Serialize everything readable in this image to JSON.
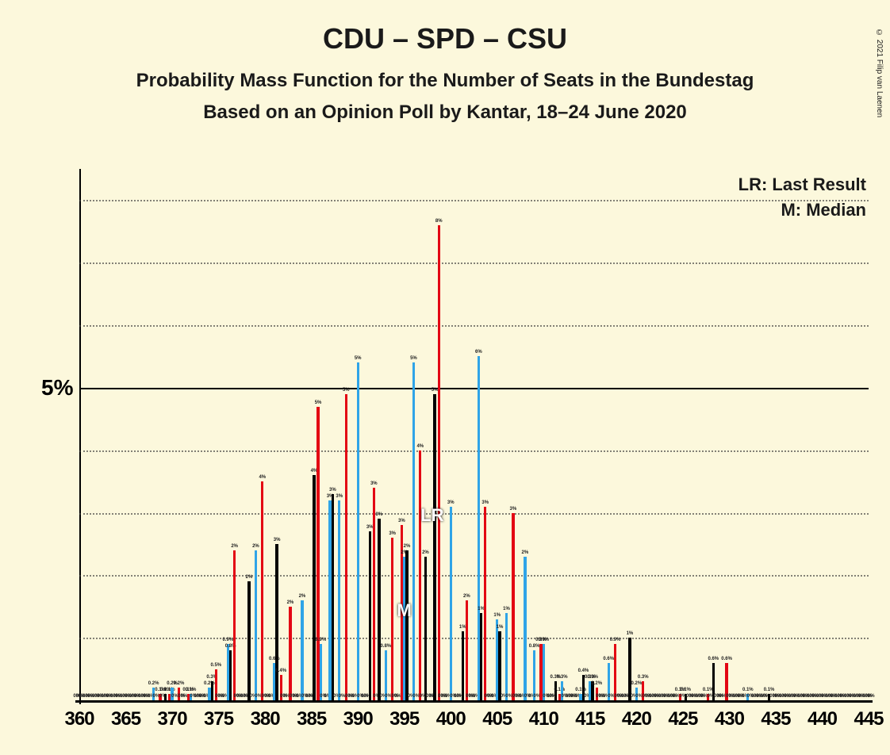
{
  "title": "CDU – SPD – CSU",
  "subtitle1": "Probability Mass Function for the Number of Seats in the Bundestag",
  "subtitle2": "Based on an Opinion Poll by Kantar, 18–24 June 2020",
  "copyright": "© 2021 Filip van Laenen",
  "legend": {
    "lr": "LR: Last Result",
    "m": "M: Median"
  },
  "chart": {
    "type": "bar",
    "background": "#fcf8dc",
    "grid_color": "#333333",
    "x_min": 360,
    "x_max": 445,
    "x_tick_step": 5,
    "y_min": 0,
    "y_max": 8.5,
    "y_tick_major": 5,
    "y_tick_minor": 1,
    "y_major_label": "5%",
    "x_ticks": [
      "360",
      "365",
      "370",
      "375",
      "380",
      "385",
      "390",
      "395",
      "400",
      "405",
      "410",
      "415",
      "420",
      "425",
      "430",
      "435",
      "440",
      "445"
    ],
    "series": [
      {
        "name": "series-red",
        "color": "#e30613",
        "offset": -1
      },
      {
        "name": "series-blue",
        "color": "#2fa4e7",
        "offset": 0
      },
      {
        "name": "series-black",
        "color": "#000000",
        "offset": 1
      }
    ],
    "bar_width": 3.3,
    "group_spacing": 11.7,
    "data": [
      {
        "x": 360,
        "v": [
          0,
          0,
          0
        ]
      },
      {
        "x": 361,
        "v": [
          0,
          0,
          0
        ]
      },
      {
        "x": 362,
        "v": [
          0,
          0,
          0
        ]
      },
      {
        "x": 363,
        "v": [
          0,
          0,
          0
        ]
      },
      {
        "x": 364,
        "v": [
          0,
          0,
          0
        ]
      },
      {
        "x": 365,
        "v": [
          0,
          0,
          0
        ]
      },
      {
        "x": 366,
        "v": [
          0,
          0,
          0
        ]
      },
      {
        "x": 367,
        "v": [
          0,
          0,
          0
        ]
      },
      {
        "x": 368,
        "v": [
          0,
          0.2,
          0
        ]
      },
      {
        "x": 369,
        "v": [
          0.1,
          0,
          0.1
        ]
      },
      {
        "x": 370,
        "v": [
          0.1,
          0.2,
          0
        ]
      },
      {
        "x": 371,
        "v": [
          0.2,
          0,
          0
        ]
      },
      {
        "x": 372,
        "v": [
          0.1,
          0.1,
          0
        ]
      },
      {
        "x": 373,
        "v": [
          0,
          0,
          0
        ]
      },
      {
        "x": 374,
        "v": [
          0,
          0.2,
          0.3
        ]
      },
      {
        "x": 375,
        "v": [
          0.5,
          0,
          0
        ]
      },
      {
        "x": 376,
        "v": [
          0,
          0.9,
          0.8
        ]
      },
      {
        "x": 377,
        "v": [
          2.4,
          0,
          0
        ]
      },
      {
        "x": 378,
        "v": [
          0,
          0,
          1.9
        ]
      },
      {
        "x": 379,
        "v": [
          0,
          2.4,
          0
        ]
      },
      {
        "x": 380,
        "v": [
          3.5,
          0,
          0
        ]
      },
      {
        "x": 381,
        "v": [
          0,
          0.6,
          2.5
        ]
      },
      {
        "x": 382,
        "v": [
          0.4,
          0,
          0
        ]
      },
      {
        "x": 383,
        "v": [
          1.5,
          0,
          0
        ]
      },
      {
        "x": 384,
        "v": [
          0,
          1.6,
          0
        ]
      },
      {
        "x": 385,
        "v": [
          0,
          0,
          3.6
        ]
      },
      {
        "x": 386,
        "v": [
          4.7,
          0.9,
          0
        ]
      },
      {
        "x": 387,
        "v": [
          0,
          3.2,
          3.3
        ]
      },
      {
        "x": 388,
        "v": [
          0,
          3.2,
          0
        ]
      },
      {
        "x": 389,
        "v": [
          4.9,
          0,
          0
        ]
      },
      {
        "x": 390,
        "v": [
          0,
          5.4,
          0
        ]
      },
      {
        "x": 391,
        "v": [
          0,
          0,
          2.7
        ]
      },
      {
        "x": 392,
        "v": [
          3.4,
          0,
          2.9
        ]
      },
      {
        "x": 393,
        "v": [
          0,
          0.8,
          0
        ]
      },
      {
        "x": 394,
        "v": [
          2.6,
          0,
          0
        ]
      },
      {
        "x": 395,
        "v": [
          2.8,
          2.3,
          2.4
        ]
      },
      {
        "x": 396,
        "v": [
          0,
          5.4,
          0
        ]
      },
      {
        "x": 397,
        "v": [
          4.0,
          0,
          2.3
        ]
      },
      {
        "x": 398,
        "v": [
          0,
          0,
          4.9
        ]
      },
      {
        "x": 399,
        "v": [
          7.6,
          0,
          0
        ]
      },
      {
        "x": 400,
        "v": [
          0,
          3.1,
          0
        ]
      },
      {
        "x": 401,
        "v": [
          0,
          0,
          1.1
        ]
      },
      {
        "x": 402,
        "v": [
          1.6,
          0,
          0
        ]
      },
      {
        "x": 403,
        "v": [
          0,
          5.5,
          1.4
        ]
      },
      {
        "x": 404,
        "v": [
          3.1,
          0,
          0
        ]
      },
      {
        "x": 405,
        "v": [
          0,
          1.3,
          1.1
        ]
      },
      {
        "x": 406,
        "v": [
          0,
          1.4,
          0
        ]
      },
      {
        "x": 407,
        "v": [
          3.0,
          0,
          0
        ]
      },
      {
        "x": 408,
        "v": [
          0,
          2.3,
          0
        ]
      },
      {
        "x": 409,
        "v": [
          0,
          0.8,
          0
        ]
      },
      {
        "x": 410,
        "v": [
          0.9,
          0.9,
          0
        ]
      },
      {
        "x": 411,
        "v": [
          0,
          0,
          0.3
        ]
      },
      {
        "x": 412,
        "v": [
          0.1,
          0.3,
          0
        ]
      },
      {
        "x": 413,
        "v": [
          0,
          0,
          0
        ]
      },
      {
        "x": 414,
        "v": [
          0,
          0.1,
          0.4
        ]
      },
      {
        "x": 415,
        "v": [
          0,
          0.3,
          0.3
        ]
      },
      {
        "x": 416,
        "v": [
          0.2,
          0,
          0
        ]
      },
      {
        "x": 417,
        "v": [
          0,
          0.6,
          0
        ]
      },
      {
        "x": 418,
        "v": [
          0.9,
          0,
          0
        ]
      },
      {
        "x": 419,
        "v": [
          0,
          0,
          1.0
        ]
      },
      {
        "x": 420,
        "v": [
          0,
          0.2,
          0
        ]
      },
      {
        "x": 421,
        "v": [
          0.3,
          0,
          0
        ]
      },
      {
        "x": 422,
        "v": [
          0,
          0,
          0
        ]
      },
      {
        "x": 423,
        "v": [
          0,
          0,
          0
        ]
      },
      {
        "x": 424,
        "v": [
          0,
          0,
          0
        ]
      },
      {
        "x": 425,
        "v": [
          0.1,
          0,
          0.1
        ]
      },
      {
        "x": 426,
        "v": [
          0,
          0,
          0
        ]
      },
      {
        "x": 427,
        "v": [
          0,
          0,
          0
        ]
      },
      {
        "x": 428,
        "v": [
          0.1,
          0,
          0.6
        ]
      },
      {
        "x": 429,
        "v": [
          0,
          0,
          0
        ]
      },
      {
        "x": 430,
        "v": [
          0.6,
          0,
          0
        ]
      },
      {
        "x": 431,
        "v": [
          0,
          0,
          0
        ]
      },
      {
        "x": 432,
        "v": [
          0,
          0.1,
          0
        ]
      },
      {
        "x": 433,
        "v": [
          0,
          0,
          0
        ]
      },
      {
        "x": 434,
        "v": [
          0,
          0,
          0.1
        ]
      },
      {
        "x": 435,
        "v": [
          0,
          0,
          0
        ]
      },
      {
        "x": 436,
        "v": [
          0,
          0,
          0
        ]
      },
      {
        "x": 437,
        "v": [
          0,
          0,
          0
        ]
      },
      {
        "x": 438,
        "v": [
          0,
          0,
          0
        ]
      },
      {
        "x": 439,
        "v": [
          0,
          0,
          0
        ]
      },
      {
        "x": 440,
        "v": [
          0,
          0,
          0
        ]
      },
      {
        "x": 441,
        "v": [
          0,
          0,
          0
        ]
      },
      {
        "x": 442,
        "v": [
          0,
          0,
          0
        ]
      },
      {
        "x": 443,
        "v": [
          0,
          0,
          0
        ]
      },
      {
        "x": 444,
        "v": [
          0,
          0,
          0
        ]
      },
      {
        "x": 445,
        "v": [
          0,
          0,
          0
        ]
      }
    ],
    "markers": {
      "LR": {
        "x": 398,
        "label": "LR"
      },
      "M": {
        "x": 395,
        "label": "M"
      }
    }
  }
}
